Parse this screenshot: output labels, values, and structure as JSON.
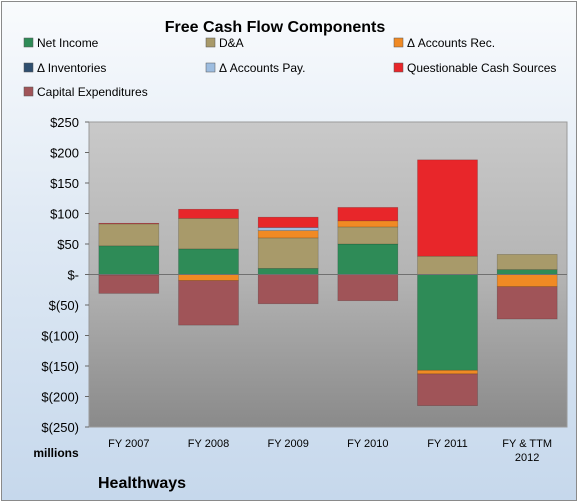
{
  "chart_data": {
    "type": "bar",
    "stacked": true,
    "title": "Free Cash Flow Components",
    "unit_label": "millions",
    "company": "Healthways",
    "categories": [
      "FY 2007",
      "FY 2008",
      "FY 2009",
      "FY 2010",
      "FY 2011",
      "FY & TTM 2012"
    ],
    "ylim": [
      -250,
      250
    ],
    "yticks": [
      250,
      200,
      150,
      100,
      50,
      0,
      -50,
      -100,
      -150,
      -200,
      -250
    ],
    "ytick_labels": [
      "$250",
      "$200",
      "$150",
      "$100",
      "$50",
      "$-",
      "$(50)",
      "$(100)",
      "$(150)",
      "$(200)",
      "$(250)"
    ],
    "legend_position": "top",
    "grid": false,
    "series": [
      {
        "name": "Net Income",
        "color": "#2e8b57",
        "values": [
          47,
          42,
          10,
          50,
          -157,
          8
        ]
      },
      {
        "name": "D&A",
        "color": "#a89a6a",
        "values": [
          36,
          50,
          50,
          28,
          30,
          25
        ]
      },
      {
        "name": "Δ Accounts Rec.",
        "color": "#f08a24",
        "values": [
          -1,
          -10,
          12,
          10,
          -6,
          -20
        ]
      },
      {
        "name": "Δ Inventories",
        "color": "#2f4f6f",
        "values": [
          0,
          0,
          0,
          0,
          0,
          0
        ]
      },
      {
        "name": "Δ Accounts Pay.",
        "color": "#9dbde0",
        "values": [
          0,
          0,
          5,
          0,
          0,
          0
        ]
      },
      {
        "name": "Questionable Cash Sources",
        "color": "#e8262a",
        "values": [
          1,
          15,
          17,
          22,
          158,
          0
        ]
      },
      {
        "name": "Capital Expenditures",
        "color": "#a05458",
        "values": [
          -30,
          -73,
          -48,
          -43,
          -52,
          -53
        ]
      }
    ]
  }
}
